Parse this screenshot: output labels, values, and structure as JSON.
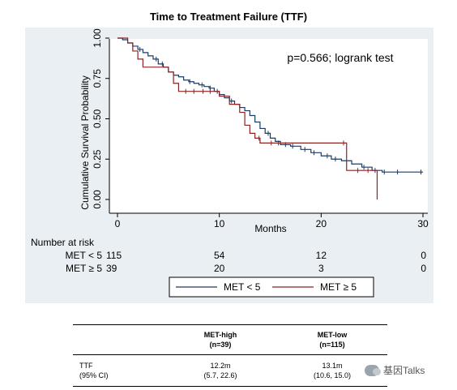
{
  "chart_data": {
    "type": "line",
    "title": "Time to Treatment Failure (TTF)",
    "xlabel": "Months",
    "ylabel": "Cumulative Survival Probability",
    "xlim": [
      0,
      30
    ],
    "ylim": [
      0,
      1
    ],
    "xticks": [
      0,
      10,
      20,
      30
    ],
    "yticks": [
      "0.00",
      "0.25",
      "0.50",
      "0.75",
      "1.00"
    ],
    "annotation": "p=0.566; logrank test",
    "legend_position": "bottom",
    "series": [
      {
        "name": "MET < 5",
        "color": "#1f3a5f",
        "steps": [
          [
            0,
            1.0
          ],
          [
            0.5,
            0.99
          ],
          [
            1.0,
            0.97
          ],
          [
            1.5,
            0.95
          ],
          [
            2.0,
            0.93
          ],
          [
            2.5,
            0.91
          ],
          [
            3.0,
            0.89
          ],
          [
            3.5,
            0.87
          ],
          [
            4.0,
            0.84
          ],
          [
            4.5,
            0.82
          ],
          [
            5.0,
            0.79
          ],
          [
            5.5,
            0.77
          ],
          [
            6.0,
            0.76
          ],
          [
            6.5,
            0.74
          ],
          [
            7.0,
            0.73
          ],
          [
            7.5,
            0.72
          ],
          [
            8.0,
            0.71
          ],
          [
            8.5,
            0.7
          ],
          [
            9.0,
            0.69
          ],
          [
            9.5,
            0.67
          ],
          [
            10.0,
            0.65
          ],
          [
            10.5,
            0.63
          ],
          [
            11.0,
            0.61
          ],
          [
            11.5,
            0.59
          ],
          [
            12.0,
            0.57
          ],
          [
            12.5,
            0.55
          ],
          [
            13.0,
            0.52
          ],
          [
            13.5,
            0.48
          ],
          [
            14.0,
            0.44
          ],
          [
            14.5,
            0.41
          ],
          [
            15.0,
            0.38
          ],
          [
            15.5,
            0.36
          ],
          [
            16.0,
            0.34
          ],
          [
            17.0,
            0.33
          ],
          [
            18.0,
            0.31
          ],
          [
            19.0,
            0.29
          ],
          [
            20.0,
            0.27
          ],
          [
            21.0,
            0.25
          ],
          [
            22.0,
            0.24
          ],
          [
            23.0,
            0.22
          ],
          [
            24.0,
            0.2
          ],
          [
            25.0,
            0.18
          ],
          [
            26.0,
            0.17
          ],
          [
            30.0,
            0.17
          ]
        ],
        "censored": [
          [
            2.2,
            0.93
          ],
          [
            3.8,
            0.87
          ],
          [
            4.4,
            0.84
          ],
          [
            7.1,
            0.73
          ],
          [
            8.3,
            0.71
          ],
          [
            9.1,
            0.69
          ],
          [
            9.8,
            0.67
          ],
          [
            11.2,
            0.61
          ],
          [
            14.8,
            0.41
          ],
          [
            16.5,
            0.34
          ],
          [
            17.2,
            0.33
          ],
          [
            18.4,
            0.31
          ],
          [
            19.3,
            0.29
          ],
          [
            20.6,
            0.27
          ],
          [
            21.4,
            0.25
          ],
          [
            24.2,
            0.2
          ],
          [
            25.3,
            0.18
          ],
          [
            26.2,
            0.17
          ],
          [
            27.5,
            0.17
          ],
          [
            29.8,
            0.17
          ]
        ]
      },
      {
        "name": "MET ≥ 5",
        "color": "#8b2323",
        "steps": [
          [
            0,
            1.0
          ],
          [
            1.0,
            0.97
          ],
          [
            1.5,
            0.92
          ],
          [
            2.0,
            0.87
          ],
          [
            2.5,
            0.82
          ],
          [
            5.0,
            0.79
          ],
          [
            5.5,
            0.72
          ],
          [
            6.0,
            0.67
          ],
          [
            10.0,
            0.64
          ],
          [
            11.0,
            0.59
          ],
          [
            12.0,
            0.54
          ],
          [
            12.5,
            0.46
          ],
          [
            13.0,
            0.41
          ],
          [
            13.5,
            0.38
          ],
          [
            14.0,
            0.35
          ],
          [
            22.5,
            0.18
          ],
          [
            25.5,
            0.0
          ]
        ],
        "censored": [
          [
            6.7,
            0.67
          ],
          [
            7.5,
            0.67
          ],
          [
            8.4,
            0.67
          ],
          [
            9.1,
            0.67
          ],
          [
            13.9,
            0.38
          ],
          [
            15.1,
            0.35
          ],
          [
            15.8,
            0.35
          ],
          [
            22.2,
            0.35
          ],
          [
            23.6,
            0.18
          ],
          [
            24.6,
            0.18
          ]
        ]
      }
    ],
    "risk_table": {
      "title": "Number at risk",
      "times": [
        0,
        10,
        20,
        30
      ],
      "rows": [
        {
          "label": "MET < 5",
          "values": [
            "115",
            "54",
            "12",
            "0"
          ]
        },
        {
          "label": "MET ≥ 5",
          "values": [
            "39",
            "20",
            "3",
            "0"
          ]
        }
      ]
    }
  },
  "summary_table": {
    "columns": [
      {
        "line1": "",
        "line2": ""
      },
      {
        "line1": "MET-high",
        "line2": "(n=39)"
      },
      {
        "line1": "MET-low",
        "line2": "(n=115)"
      }
    ],
    "row": {
      "label_line1": "TTF",
      "label_line2": "(95% CI)",
      "high_line1": "12.2m",
      "high_line2": "(5.7, 22.6)",
      "low_line1": "13.1m",
      "low_line2": "(10.6, 15.0)"
    }
  },
  "watermark": {
    "text": "基因Talks",
    "icon": "wechat-icon"
  }
}
